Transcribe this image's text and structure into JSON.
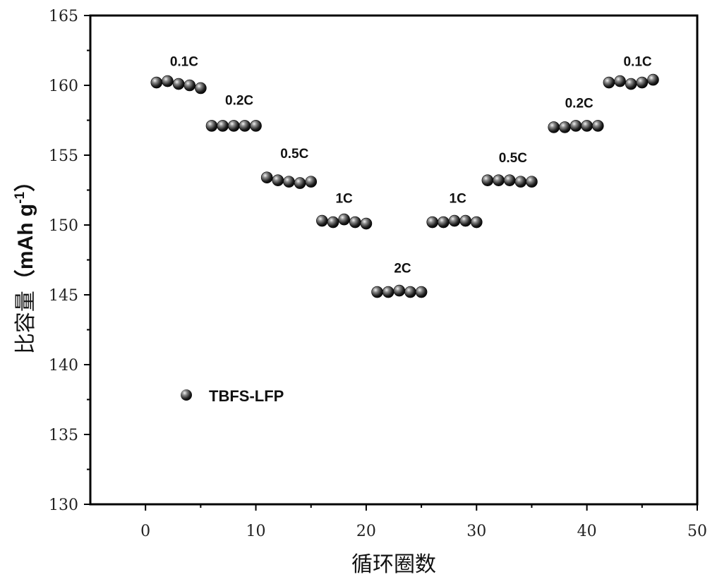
{
  "chart_data": {
    "type": "scatter",
    "xlabel": "循环圈数",
    "ylabel_main": "比容量",
    "ylabel_unit_open": "（mAh g",
    "ylabel_unit_sup": "-1",
    "ylabel_unit_close": "）",
    "xlim": [
      -5,
      50
    ],
    "ylim": [
      130,
      165
    ],
    "xticks": [
      0,
      10,
      20,
      30,
      40,
      50
    ],
    "yticks": [
      130,
      135,
      140,
      145,
      150,
      155,
      160,
      165
    ],
    "grid": false,
    "legend_position": "middle-left",
    "marker_color": "#111111",
    "series": [
      {
        "name": "TBFS-LFP",
        "x": [
          1,
          2,
          3,
          4,
          5,
          6,
          7,
          8,
          9,
          10,
          11,
          12,
          13,
          14,
          15,
          16,
          17,
          18,
          19,
          20,
          21,
          22,
          23,
          24,
          25,
          26,
          27,
          28,
          29,
          30,
          31,
          32,
          33,
          34,
          35,
          37,
          38,
          39,
          40,
          41,
          42,
          43,
          44,
          45,
          46
        ],
        "y": [
          160.2,
          160.3,
          160.1,
          160.0,
          159.8,
          157.1,
          157.1,
          157.1,
          157.1,
          157.1,
          153.4,
          153.2,
          153.1,
          153.0,
          153.1,
          150.3,
          150.2,
          150.4,
          150.2,
          150.1,
          145.2,
          145.2,
          145.3,
          145.2,
          145.2,
          150.2,
          150.2,
          150.3,
          150.3,
          150.2,
          153.2,
          153.2,
          153.2,
          153.1,
          153.1,
          157.0,
          157.0,
          157.1,
          157.1,
          157.1,
          160.2,
          160.3,
          160.1,
          160.2,
          160.4
        ]
      }
    ],
    "annotations": [
      {
        "text": "0.1C",
        "x": 3.5,
        "y": 161.4
      },
      {
        "text": "0.2C",
        "x": 8.5,
        "y": 158.6
      },
      {
        "text": "0.5C",
        "x": 13.5,
        "y": 154.8
      },
      {
        "text": "1C",
        "x": 18.0,
        "y": 151.6
      },
      {
        "text": "2C",
        "x": 23.3,
        "y": 146.6
      },
      {
        "text": "1C",
        "x": 28.3,
        "y": 151.6
      },
      {
        "text": "0.5C",
        "x": 33.3,
        "y": 154.5
      },
      {
        "text": "0.2C",
        "x": 39.3,
        "y": 158.4
      },
      {
        "text": "0.1C",
        "x": 44.6,
        "y": 161.4
      }
    ]
  }
}
